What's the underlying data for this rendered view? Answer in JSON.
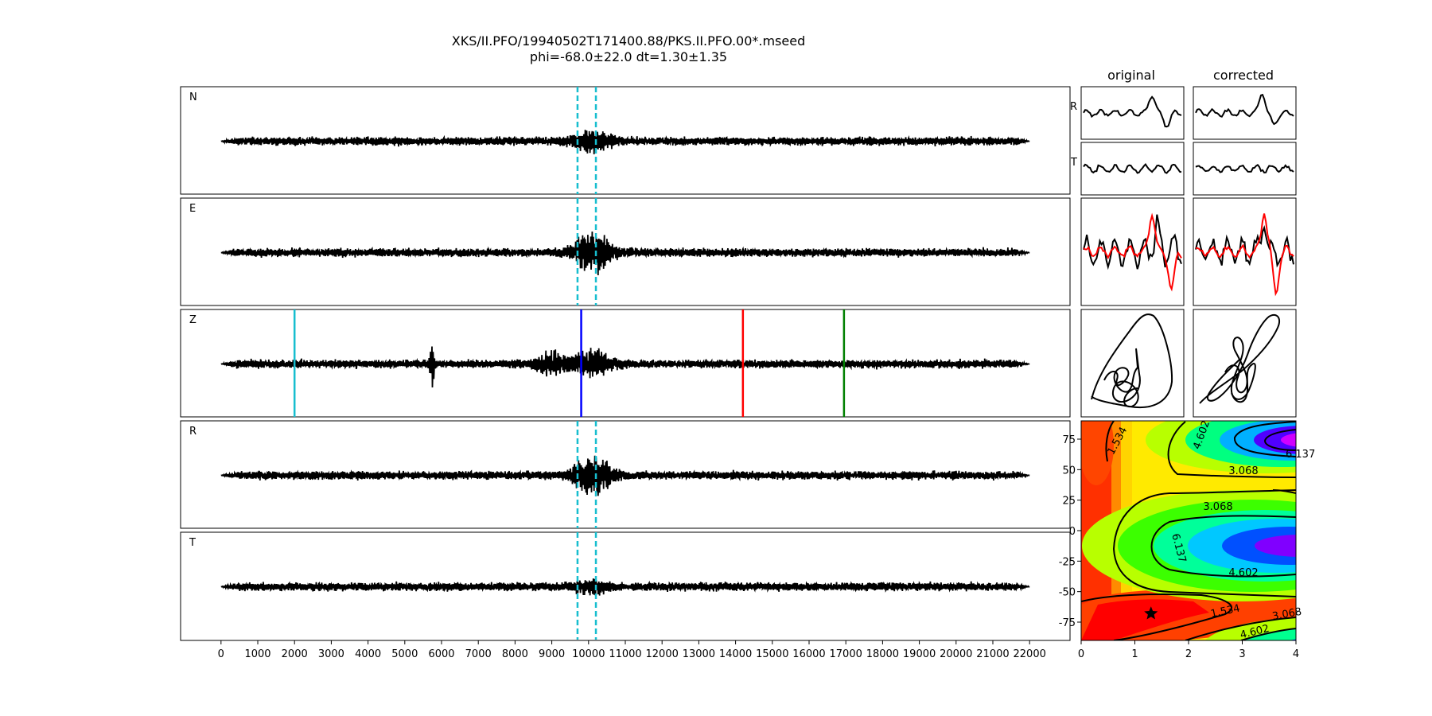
{
  "figure": {
    "title_line1": "XKS/II.PFO/19940502T171400.88/PKS.II.PFO.00*.mseed",
    "title_line2": "phi=-68.0±22.0 dt=1.30±1.35",
    "original_header": "original",
    "corrected_header": "corrected"
  },
  "chart_data": [
    {
      "type": "line",
      "description_of_panels": "seismogram traces",
      "panels": [
        {
          "label": "N",
          "window_lines": [
            9700,
            10200
          ],
          "window_color": "#17becf"
        },
        {
          "label": "E",
          "window_lines": [
            9700,
            10200
          ],
          "window_color": "#17becf"
        },
        {
          "label": "Z",
          "phase_lines": [
            {
              "x": 2000,
              "color": "#17becf"
            },
            {
              "x": 9800,
              "color": "#0000ff"
            },
            {
              "x": 14200,
              "color": "#ff0000"
            },
            {
              "x": 16950,
              "color": "#008000"
            }
          ]
        },
        {
          "label": "R",
          "window_lines": [
            9700,
            10200
          ],
          "window_color": "#17becf"
        },
        {
          "label": "T",
          "window_lines": [
            9700,
            10200
          ],
          "window_color": "#17becf"
        }
      ],
      "x_ticks": [
        0,
        1000,
        2000,
        3000,
        4000,
        5000,
        6000,
        7000,
        8000,
        9000,
        10000,
        11000,
        12000,
        13000,
        14000,
        15000,
        16000,
        17000,
        18000,
        19000,
        20000,
        21000,
        22000
      ],
      "xlim": [
        -1100,
        23100
      ],
      "series_color": "#000000"
    },
    {
      "type": "line",
      "columns": [
        "original",
        "corrected"
      ],
      "row_labels": [
        "R",
        "T"
      ],
      "overlay_colors": [
        "#000000",
        "#ff0000"
      ]
    },
    {
      "type": "heatmap",
      "xlim": [
        0,
        4
      ],
      "ylim": [
        -90,
        90
      ],
      "x_ticks": [
        0,
        1,
        2,
        3,
        4
      ],
      "y_ticks": [
        75,
        50,
        25,
        0,
        -25,
        -50,
        -75
      ],
      "contour_labels": [
        "1.534",
        "3.068",
        "4.602",
        "6.137"
      ],
      "marker": {
        "symbol": "star",
        "x": 1.3,
        "y": -68.0
      },
      "colormap": "rainbow"
    }
  ]
}
